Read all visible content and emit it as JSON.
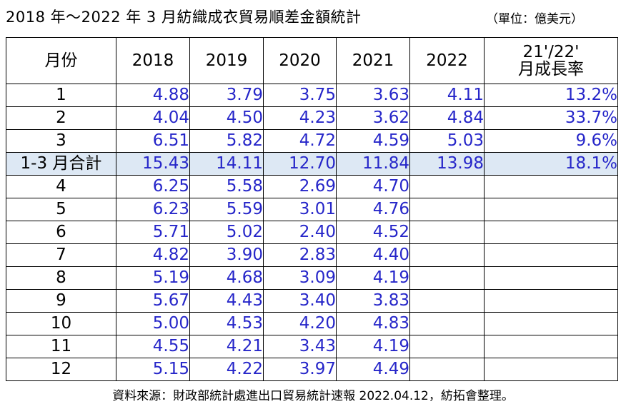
{
  "title": "2018 年～2022 年 3 月紡織成衣貿易順差金額統計",
  "unit": "（單位：億美元）",
  "header": {
    "month": "月份",
    "y2018": "2018",
    "y2019": "2019",
    "y2020": "2020",
    "y2021": "2021",
    "y2022": "2022",
    "growth_line1": "21'/22'",
    "growth_line2": "月成長率"
  },
  "rows": [
    {
      "month": "1",
      "y2018": "4.88",
      "y2019": "3.79",
      "y2020": "3.75",
      "y2021": "3.63",
      "y2022": "4.11",
      "growth": "13.2%"
    },
    {
      "month": "2",
      "y2018": "4.04",
      "y2019": "4.50",
      "y2020": "4.23",
      "y2021": "3.62",
      "y2022": "4.84",
      "growth": "33.7%"
    },
    {
      "month": "3",
      "y2018": "6.51",
      "y2019": "5.82",
      "y2020": "4.72",
      "y2021": "4.59",
      "y2022": "5.03",
      "growth": "9.6%"
    },
    {
      "month": "1-3 月合計",
      "y2018": "15.43",
      "y2019": "14.11",
      "y2020": "12.70",
      "y2021": "11.84",
      "y2022": "13.98",
      "growth": "18.1%"
    },
    {
      "month": "4",
      "y2018": "6.25",
      "y2019": "5.58",
      "y2020": "2.69",
      "y2021": "4.70",
      "y2022": "",
      "growth": ""
    },
    {
      "month": "5",
      "y2018": "6.23",
      "y2019": "5.59",
      "y2020": "3.01",
      "y2021": "4.76",
      "y2022": "",
      "growth": ""
    },
    {
      "month": "6",
      "y2018": "5.71",
      "y2019": "5.02",
      "y2020": "2.40",
      "y2021": "4.52",
      "y2022": "",
      "growth": ""
    },
    {
      "month": "7",
      "y2018": "4.82",
      "y2019": "3.90",
      "y2020": "2.83",
      "y2021": "4.40",
      "y2022": "",
      "growth": ""
    },
    {
      "month": "8",
      "y2018": "5.19",
      "y2019": "4.68",
      "y2020": "3.09",
      "y2021": "4.19",
      "y2022": "",
      "growth": ""
    },
    {
      "month": "9",
      "y2018": "5.67",
      "y2019": "4.43",
      "y2020": "3.40",
      "y2021": "3.83",
      "y2022": "",
      "growth": ""
    },
    {
      "month": "10",
      "y2018": "5.00",
      "y2019": "4.53",
      "y2020": "4.20",
      "y2021": "4.83",
      "y2022": "",
      "growth": ""
    },
    {
      "month": "11",
      "y2018": "4.55",
      "y2019": "4.21",
      "y2020": "3.43",
      "y2021": "4.19",
      "y2022": "",
      "growth": ""
    },
    {
      "month": "12",
      "y2018": "5.15",
      "y2019": "4.22",
      "y2020": "3.97",
      "y2021": "4.49",
      "y2022": "",
      "growth": ""
    }
  ],
  "source": "資料來源：財政部統計處進出口貿易統計速報 2022.04.12，紡拓會整理。",
  "colors": {
    "value_text": "#2626c9",
    "summary_row_bg": "#dde8f4"
  }
}
